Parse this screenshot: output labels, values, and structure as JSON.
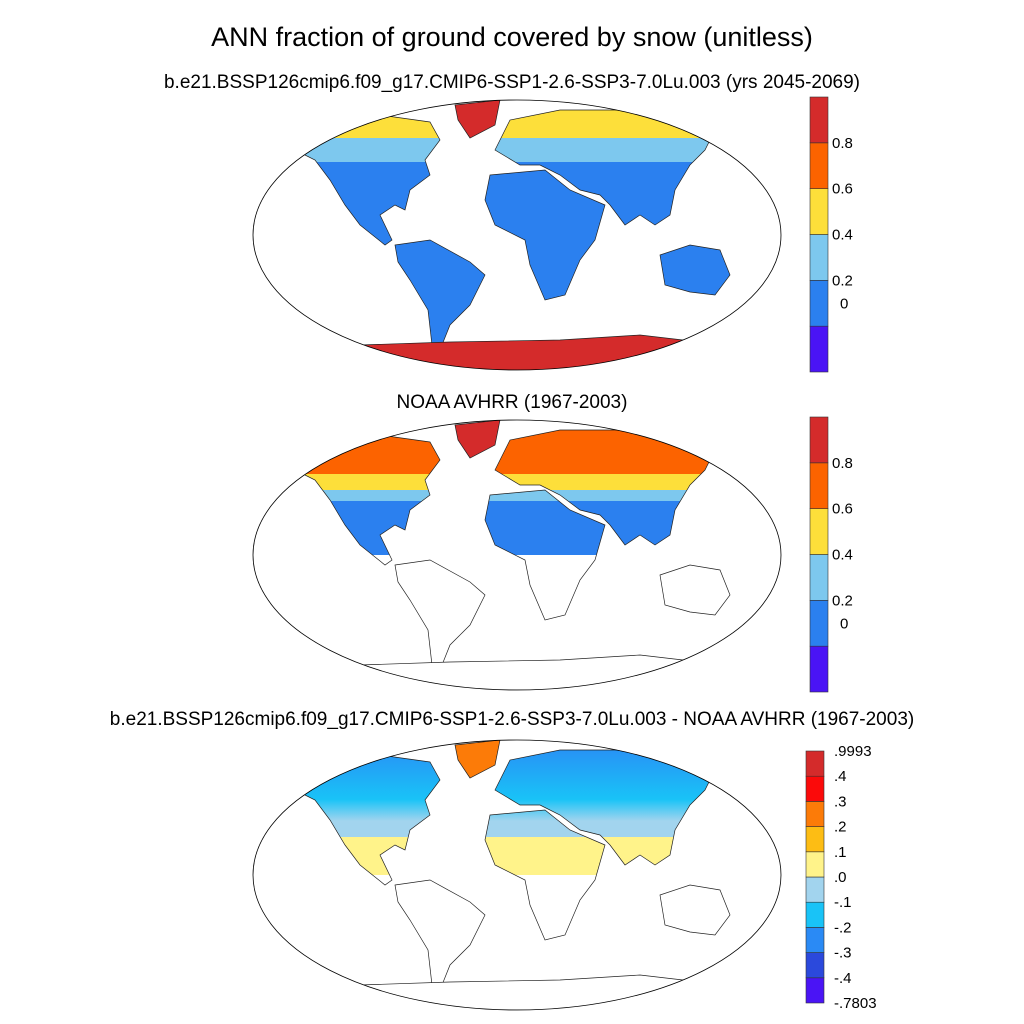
{
  "title": "ANN fraction of ground covered by snow (unitless)",
  "panels": [
    {
      "title": "b.e21.BSSP126cmip6.f09_g17.CMIP6-SSP1-2.6-SSP3-7.0Lu.003 (yrs 2045-2069)"
    },
    {
      "title": "NOAA AVHRR (1967-2003)"
    },
    {
      "title": "b.e21.BSSP126cmip6.f09_g17.CMIP6-SSP1-2.6-SSP3-7.0Lu.003 - NOAA AVHRR (1967-2003)"
    }
  ],
  "colorbars": {
    "abs": {
      "colors": [
        "#4a14f5",
        "#2b80ef",
        "#7dc8ee",
        "#fddf3a",
        "#fc6300",
        "#d42b2b"
      ],
      "labels": [
        "0",
        "0.2",
        "0.4",
        "0.6",
        "0.8"
      ]
    },
    "diff": {
      "colors": [
        "#4a14f5",
        "#2b49dc",
        "#2a8af5",
        "#19c3f7",
        "#a2d4ee",
        "#fff38a",
        "#fdbd14",
        "#fc7b08",
        "#fb0a0a",
        "#d42b2b"
      ],
      "labels": [
        "-.7803",
        "-.4",
        "-.3",
        "-.2",
        "-.1",
        ".0",
        ".1",
        ".2",
        ".3",
        ".4",
        ".9993"
      ]
    }
  }
}
